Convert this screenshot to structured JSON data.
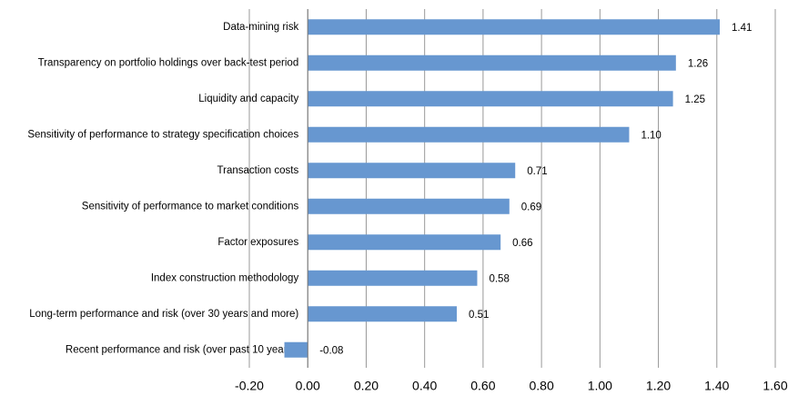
{
  "chart_data": {
    "type": "bar",
    "orientation": "horizontal",
    "categories": [
      "Data-mining risk",
      "Transparency on portfolio holdings over back-test period",
      "Liquidity and capacity",
      "Sensitivity of performance to strategy specification choices",
      "Transaction costs",
      "Sensitivity of performance to market conditions",
      "Factor exposures",
      "Index construction methodology",
      "Long-term performance and risk (over 30 years and more)",
      "Recent performance and risk (over past 10 years )"
    ],
    "values": [
      1.41,
      1.26,
      1.25,
      1.1,
      0.71,
      0.69,
      0.66,
      0.58,
      0.51,
      -0.08
    ],
    "value_labels": [
      "1.41",
      "1.26",
      "1.25",
      "1.10",
      "0.71",
      "0.69",
      "0.66",
      "0.58",
      "0.51",
      "-0.08"
    ],
    "color": "#6797d0",
    "xlim": [
      -0.2,
      1.6
    ],
    "xticks": [
      {
        "value": -0.2,
        "label": "-0.20"
      },
      {
        "value": 0,
        "label": "0.00"
      },
      {
        "value": 0.2,
        "label": "0.20"
      },
      {
        "value": 0.4,
        "label": "0.40"
      },
      {
        "value": 0.6,
        "label": "0.60"
      },
      {
        "value": 0.8,
        "label": "0.80"
      },
      {
        "value": 1,
        "label": "1.00"
      },
      {
        "value": 1.2,
        "label": "1.20"
      },
      {
        "value": 1.4,
        "label": "1.40"
      },
      {
        "value": 1.6,
        "label": "1.60"
      }
    ],
    "grid": true
  }
}
